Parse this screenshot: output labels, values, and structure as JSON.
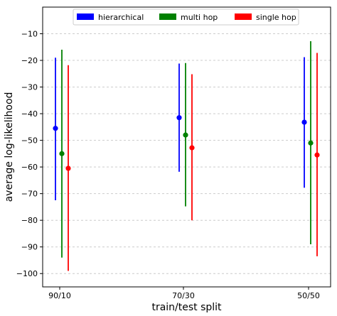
{
  "chart_data": {
    "type": "errorbar",
    "title": "",
    "xlabel": "train/test split",
    "ylabel": "average log-likelihood",
    "categories": [
      "90/10",
      "70/30",
      "50/50"
    ],
    "ylim": [
      -105,
      0
    ],
    "yticks": [
      -10,
      -20,
      -30,
      -40,
      -50,
      -60,
      -70,
      -80,
      -90,
      -100
    ],
    "grid": "horizontal dashed",
    "legend_position": "top",
    "series": [
      {
        "name": "hierarchical",
        "color": "#0000ff",
        "values": [
          -45.5,
          -41.5,
          -43.2
        ],
        "lower": [
          -72.5,
          -61.8,
          -67.8
        ],
        "upper": [
          -19.0,
          -21.2,
          -18.8
        ]
      },
      {
        "name": "multi hop",
        "color": "#008000",
        "values": [
          -55.0,
          -48.0,
          -51.0
        ],
        "lower": [
          -94.0,
          -74.8,
          -89.0
        ],
        "upper": [
          -16.0,
          -21.0,
          -12.8
        ]
      },
      {
        "name": "single hop",
        "color": "#ff0000",
        "values": [
          -60.5,
          -52.8,
          -55.5
        ],
        "lower": [
          -99.0,
          -80.0,
          -93.5
        ],
        "upper": [
          -21.8,
          -25.2,
          -17.2
        ]
      }
    ]
  }
}
